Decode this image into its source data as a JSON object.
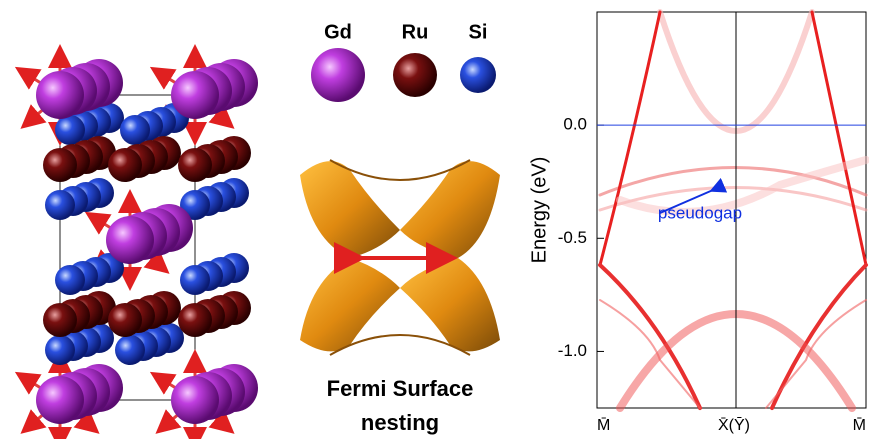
{
  "legend": {
    "atoms": [
      {
        "label": "Gd"
      },
      {
        "label": "Ru"
      },
      {
        "label": "Si"
      }
    ]
  },
  "fermi_surface": {
    "caption_lines": [
      "Fermi Surface",
      "nesting"
    ]
  },
  "band_plot": {
    "ylabel": "Energy (eV)",
    "ylim": [
      -1.25,
      0.5
    ],
    "yticks": [
      {
        "value": 0,
        "label": "0.0"
      },
      {
        "value": -0.5,
        "label": "-0.5"
      },
      {
        "value": -1,
        "label": "-1.0"
      }
    ],
    "xticks": [
      "M̄",
      "X̄(Ȳ)",
      "M̄"
    ],
    "fermi_level": 0,
    "annotation": "pseudogap"
  }
}
